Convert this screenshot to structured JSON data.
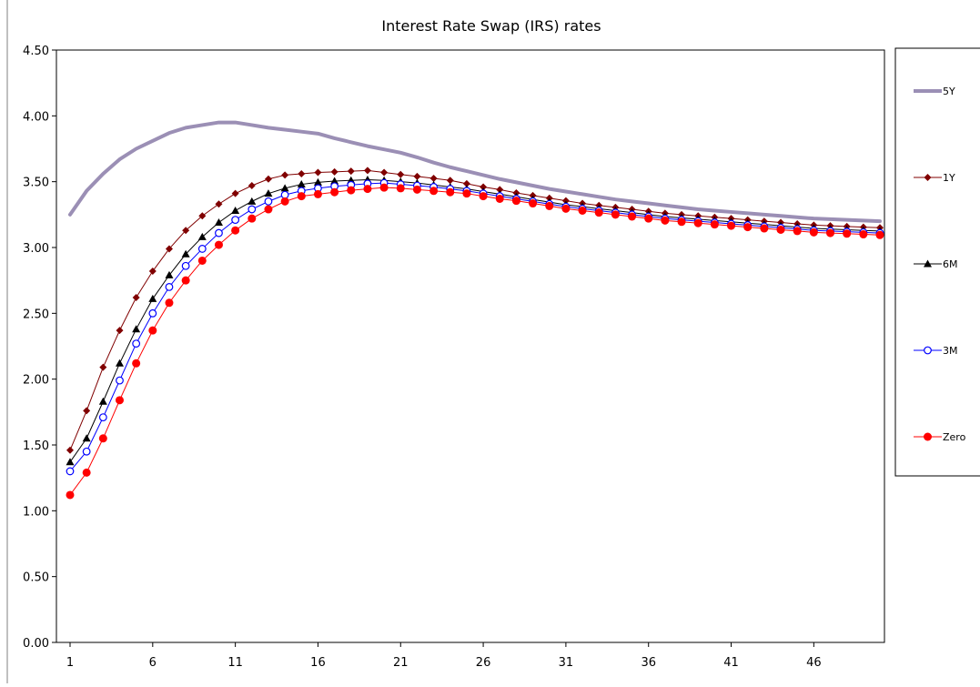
{
  "chart_data": {
    "type": "line",
    "title": "Interest Rate Swap (IRS) rates",
    "xlabel": "",
    "ylabel": "",
    "ylim": [
      0,
      4.5
    ],
    "xlim": [
      1,
      50
    ],
    "y_ticks": [
      "0.00",
      "0.50",
      "1.00",
      "1.50",
      "2.00",
      "2.50",
      "3.00",
      "3.50",
      "4.00",
      "4.50"
    ],
    "x_ticks": [
      "1",
      "6",
      "11",
      "16",
      "21",
      "26",
      "31",
      "36",
      "41",
      "46"
    ],
    "grid": false,
    "legend_position": "right",
    "x": [
      1,
      2,
      3,
      4,
      5,
      6,
      7,
      8,
      9,
      10,
      11,
      12,
      13,
      14,
      15,
      16,
      17,
      18,
      19,
      20,
      21,
      22,
      23,
      24,
      25,
      26,
      27,
      28,
      29,
      30,
      31,
      32,
      33,
      34,
      35,
      36,
      37,
      38,
      39,
      40,
      41,
      42,
      43,
      44,
      45,
      46,
      47,
      48,
      49,
      50
    ],
    "series": [
      {
        "name": "5Y",
        "color": "#9b8fb5",
        "marker": "none",
        "width": 4,
        "values": [
          3.25,
          3.43,
          3.56,
          3.67,
          3.75,
          3.81,
          3.87,
          3.91,
          3.93,
          3.95,
          3.95,
          3.93,
          3.91,
          3.895,
          3.88,
          3.865,
          3.83,
          3.8,
          3.77,
          3.745,
          3.72,
          3.685,
          3.645,
          3.61,
          3.58,
          3.55,
          3.52,
          3.495,
          3.47,
          3.445,
          3.425,
          3.405,
          3.385,
          3.365,
          3.35,
          3.335,
          3.32,
          3.305,
          3.29,
          3.28,
          3.27,
          3.26,
          3.25,
          3.24,
          3.23,
          3.22,
          3.215,
          3.21,
          3.205,
          3.2
        ]
      },
      {
        "name": "1Y",
        "color": "#800000",
        "marker": "diamond",
        "width": 1,
        "values": [
          1.46,
          1.76,
          2.09,
          2.37,
          2.62,
          2.82,
          2.99,
          3.13,
          3.24,
          3.33,
          3.41,
          3.47,
          3.52,
          3.55,
          3.56,
          3.57,
          3.575,
          3.58,
          3.585,
          3.57,
          3.555,
          3.54,
          3.525,
          3.51,
          3.485,
          3.46,
          3.44,
          3.415,
          3.395,
          3.375,
          3.355,
          3.335,
          3.32,
          3.305,
          3.29,
          3.275,
          3.26,
          3.25,
          3.24,
          3.23,
          3.22,
          3.21,
          3.2,
          3.19,
          3.18,
          3.17,
          3.165,
          3.16,
          3.155,
          3.15
        ]
      },
      {
        "name": "6M",
        "color": "#000000",
        "marker": "triangle",
        "width": 1,
        "values": [
          1.37,
          1.55,
          1.83,
          2.12,
          2.38,
          2.61,
          2.79,
          2.95,
          3.08,
          3.19,
          3.28,
          3.35,
          3.41,
          3.45,
          3.48,
          3.495,
          3.505,
          3.51,
          3.515,
          3.51,
          3.5,
          3.49,
          3.475,
          3.46,
          3.445,
          3.425,
          3.405,
          3.385,
          3.365,
          3.345,
          3.325,
          3.31,
          3.295,
          3.28,
          3.265,
          3.25,
          3.235,
          3.225,
          3.215,
          3.205,
          3.195,
          3.185,
          3.175,
          3.165,
          3.155,
          3.145,
          3.14,
          3.135,
          3.13,
          3.125
        ]
      },
      {
        "name": "3M",
        "color": "#0000ff",
        "marker": "circle-open",
        "width": 1,
        "values": [
          1.3,
          1.45,
          1.71,
          1.99,
          2.27,
          2.5,
          2.7,
          2.86,
          2.99,
          3.11,
          3.21,
          3.29,
          3.35,
          3.4,
          3.43,
          3.45,
          3.465,
          3.475,
          3.485,
          3.49,
          3.48,
          3.47,
          3.46,
          3.445,
          3.43,
          3.41,
          3.39,
          3.37,
          3.35,
          3.33,
          3.31,
          3.295,
          3.28,
          3.265,
          3.25,
          3.235,
          3.22,
          3.21,
          3.2,
          3.19,
          3.18,
          3.17,
          3.16,
          3.15,
          3.14,
          3.13,
          3.125,
          3.12,
          3.115,
          3.11
        ]
      },
      {
        "name": "Zero",
        "color": "#ff0000",
        "marker": "circle-filled",
        "width": 1,
        "values": [
          1.12,
          1.29,
          1.55,
          1.84,
          2.12,
          2.37,
          2.58,
          2.75,
          2.9,
          3.02,
          3.13,
          3.22,
          3.29,
          3.35,
          3.39,
          3.405,
          3.42,
          3.435,
          3.445,
          3.455,
          3.45,
          3.44,
          3.43,
          3.42,
          3.41,
          3.39,
          3.37,
          3.355,
          3.335,
          3.315,
          3.295,
          3.28,
          3.265,
          3.25,
          3.235,
          3.22,
          3.205,
          3.195,
          3.185,
          3.175,
          3.165,
          3.155,
          3.145,
          3.135,
          3.125,
          3.115,
          3.11,
          3.105,
          3.1,
          3.095
        ]
      }
    ]
  }
}
